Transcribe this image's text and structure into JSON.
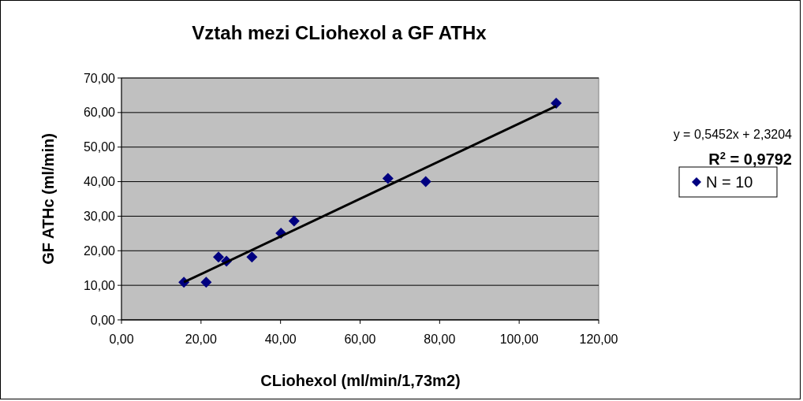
{
  "chart_data": {
    "type": "scatter",
    "title": "Vztah mezi CLiohexol a GF ATHx",
    "xlabel": "CLiohexol (ml/min/1,73m2)",
    "ylabel": "GF ATHc (ml/min)",
    "annotations": [
      "y = 0,5452x + 2,3204",
      "R$^{2}$ = 0,9792"
    ],
    "series": [
      {
        "name": "N = 10",
        "color": "#000080",
        "marker": "diamond",
        "x": [
          15.7,
          21.3,
          24.4,
          26.4,
          32.8,
          40.1,
          43.4,
          67.0,
          76.5,
          109.3
        ],
        "values": [
          10.9,
          10.9,
          18.2,
          17.0,
          18.2,
          25.1,
          28.6,
          40.9,
          40.0,
          62.7
        ]
      },
      {
        "type": "line",
        "color": "#000000",
        "marker": "none",
        "line_style": "solid",
        "x": [
          15.7,
          109.3
        ],
        "values": [
          10.9,
          61.9
        ]
      }
    ],
    "xlim": [
      0,
      120
    ],
    "ylim": [
      0,
      70
    ],
    "xticks": [
      {
        "value": 0,
        "label": "0,00"
      },
      {
        "value": 20,
        "label": "20,00"
      },
      {
        "value": 40,
        "label": "40,00"
      },
      {
        "value": 60,
        "label": "60,00"
      },
      {
        "value": 80,
        "label": "80,00"
      },
      {
        "value": 100,
        "label": "100,00"
      },
      {
        "value": 120,
        "label": "120,00"
      }
    ],
    "yticks": [
      {
        "value": 0,
        "label": "0,00"
      },
      {
        "value": 10,
        "label": "10,00"
      },
      {
        "value": 20,
        "label": "20,00"
      },
      {
        "value": 30,
        "label": "30,00"
      },
      {
        "value": 40,
        "label": "40,00"
      },
      {
        "value": 50,
        "label": "50,00"
      },
      {
        "value": 60,
        "label": "60,00"
      },
      {
        "value": 70,
        "label": "70,00"
      }
    ],
    "grid": "y",
    "legend": "right"
  }
}
